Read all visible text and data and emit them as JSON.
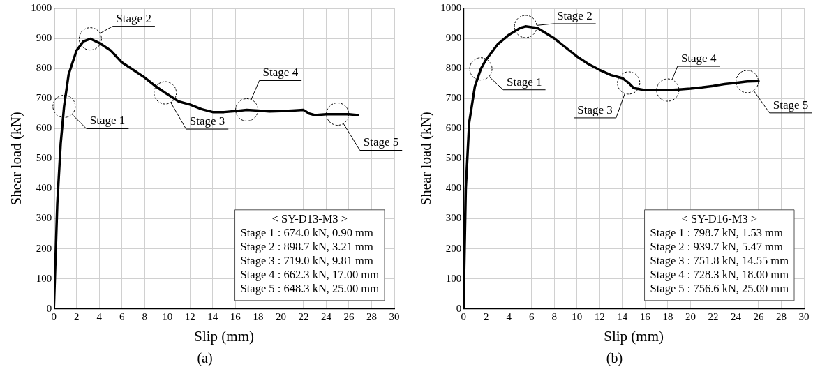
{
  "chart_data": [
    {
      "type": "line",
      "title": "(a)",
      "xlabel": "Slip (mm)",
      "ylabel": "Shear load (kN)",
      "xlim": [
        0,
        30
      ],
      "xticks": [
        0,
        2,
        4,
        6,
        8,
        10,
        12,
        14,
        16,
        18,
        20,
        22,
        24,
        26,
        28,
        30
      ],
      "ylim": [
        0,
        1000
      ],
      "yticks": [
        0,
        100,
        200,
        300,
        400,
        500,
        600,
        700,
        800,
        900,
        1000
      ],
      "grid": true,
      "legend": false,
      "marker": "none",
      "line_style": "solid",
      "series": [
        {
          "color": "#000000",
          "x": [
            0,
            0.3,
            0.6,
            0.9,
            1.3,
            2,
            2.6,
            3.21,
            4,
            5,
            6,
            7,
            8,
            9,
            9.81,
            11,
            12,
            13,
            14,
            15,
            16,
            17,
            18,
            19,
            20,
            21,
            22,
            22.5,
            23,
            24,
            25,
            26,
            26.8
          ],
          "values": [
            0,
            350,
            550,
            674,
            780,
            860,
            890,
            899,
            885,
            860,
            820,
            795,
            770,
            740,
            719,
            690,
            680,
            665,
            655,
            655,
            658,
            662,
            660,
            657,
            658,
            660,
            662,
            650,
            645,
            648,
            648,
            648,
            645
          ]
        }
      ],
      "annotations": [
        {
          "text": "Stage 1",
          "x": 0.9,
          "y": 674
        },
        {
          "text": "Stage 2",
          "x": 3.21,
          "y": 898.7
        },
        {
          "text": "Stage 3",
          "x": 9.81,
          "y": 719
        },
        {
          "text": "Stage 4",
          "x": 17,
          "y": 662.3
        },
        {
          "text": "Stage 5",
          "x": 25,
          "y": 648.3
        },
        "< SY-D13-M3 >",
        "Stage 1 : 674.0 kN, 0.90 mm",
        "Stage 2 : 898.7 kN, 3.21 mm",
        "Stage 3 : 719.0 kN, 9.81 mm",
        "Stage 4 : 662.3 kN, 17.00 mm",
        "Stage 5 : 648.3 kN, 25.00 mm"
      ]
    },
    {
      "type": "line",
      "title": "(b)",
      "xlabel": "Slip (mm)",
      "ylabel": "Shear load (kN)",
      "xlim": [
        0,
        30
      ],
      "xticks": [
        0,
        2,
        4,
        6,
        8,
        10,
        12,
        14,
        16,
        18,
        20,
        22,
        24,
        26,
        28,
        30
      ],
      "ylim": [
        0,
        1000
      ],
      "yticks": [
        0,
        100,
        200,
        300,
        400,
        500,
        600,
        700,
        800,
        900,
        1000
      ],
      "grid": true,
      "legend": false,
      "marker": "none",
      "line_style": "solid",
      "series": [
        {
          "color": "#000000",
          "x": [
            0,
            0.2,
            0.5,
            1,
            1.53,
            2,
            3,
            4,
            5,
            5.47,
            6.5,
            8,
            9,
            10,
            11,
            12,
            13,
            14,
            14.55,
            15,
            16,
            17,
            18,
            19,
            20,
            21,
            22,
            23,
            24,
            25,
            26
          ],
          "values": [
            0,
            400,
            620,
            740,
            799,
            830,
            880,
            912,
            935,
            940,
            935,
            900,
            870,
            840,
            815,
            795,
            778,
            768,
            752,
            735,
            728,
            729,
            728,
            730,
            733,
            737,
            742,
            748,
            752,
            757,
            758
          ]
        }
      ],
      "annotations": [
        {
          "text": "Stage 1",
          "x": 1.53,
          "y": 798.7
        },
        {
          "text": "Stage 2",
          "x": 5.47,
          "y": 939.7
        },
        {
          "text": "Stage 3",
          "x": 14.55,
          "y": 751.8
        },
        {
          "text": "Stage 4",
          "x": 18,
          "y": 728.3
        },
        {
          "text": "Stage 5",
          "x": 25,
          "y": 756.6
        },
        "< SY-D16-M3 >",
        "Stage 1 : 798.7 kN, 1.53 mm",
        "Stage 2 : 939.7 kN, 5.47 mm",
        "Stage 3 : 751.8 kN, 14.55 mm",
        "Stage 4 : 728.3 kN, 18.00 mm",
        "Stage 5 : 756.6 kN, 25.00 mm"
      ]
    }
  ]
}
